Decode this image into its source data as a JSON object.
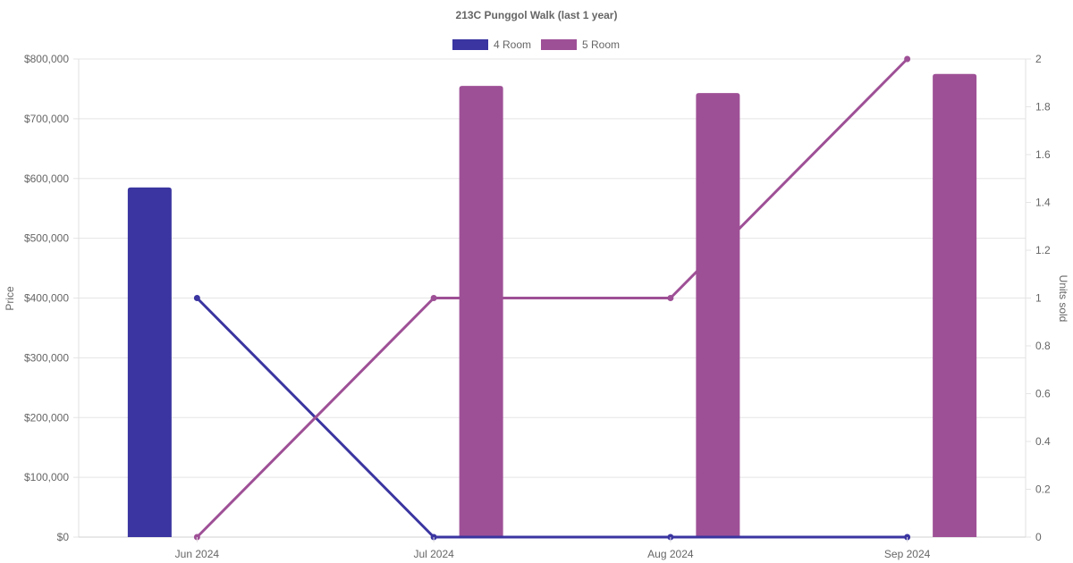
{
  "chart_data": {
    "type": "bar",
    "title": "213C Punggol Walk (last 1 year)",
    "categories": [
      "Jun 2024",
      "Jul 2024",
      "Aug 2024",
      "Sep 2024"
    ],
    "y_left": {
      "label": "Price",
      "range": [
        0,
        800000
      ],
      "ticks": [
        "$0",
        "$100,000",
        "$200,000",
        "$300,000",
        "$400,000",
        "$500,000",
        "$600,000",
        "$700,000",
        "$800,000"
      ]
    },
    "y_right": {
      "label": "Units sold",
      "range": [
        0,
        2
      ],
      "ticks": [
        "0",
        "0.2",
        "0.4",
        "0.6",
        "0.8",
        "1",
        "1.2",
        "1.4",
        "1.6",
        "1.8",
        "2"
      ]
    },
    "series": [
      {
        "name": "4 Room",
        "color": "#3a35a0",
        "bar_values": [
          585000,
          null,
          null,
          null
        ],
        "units_sold": [
          1,
          0,
          0,
          0
        ]
      },
      {
        "name": "5 Room",
        "color": "#9e5096",
        "bar_values": [
          null,
          755000,
          743000,
          775000
        ],
        "units_sold": [
          0,
          1,
          1,
          2
        ]
      }
    ],
    "legend": "top",
    "grid": true
  }
}
